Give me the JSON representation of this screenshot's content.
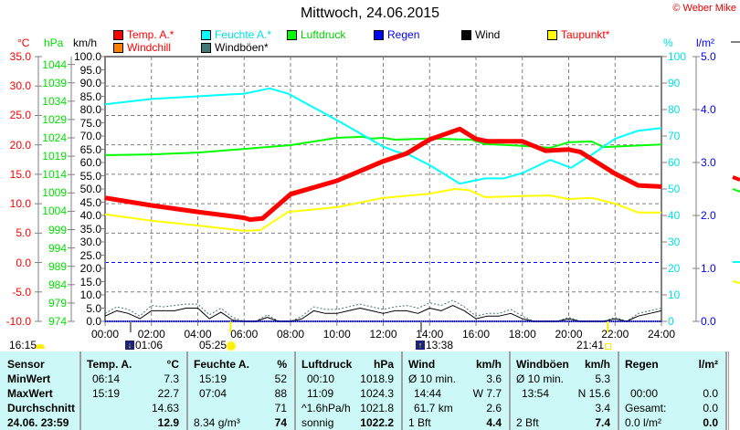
{
  "title": "Mittwoch, 24.06.2015",
  "copyright": "© Weber Mike",
  "legend": [
    {
      "label": "Temp. A.*",
      "color": "#ff0000",
      "text_color": "#ff0000"
    },
    {
      "label": "Feuchte A.*",
      "color": "#00ffff",
      "text_color": "#00e0e0"
    },
    {
      "label": "Luftdruck",
      "color": "#00ff00",
      "text_color": "#00d000"
    },
    {
      "label": "Regen",
      "color": "#0000ff",
      "text_color": "#0000ff"
    },
    {
      "label": "Wind",
      "color": "#000000",
      "text_color": "#000000"
    },
    {
      "label": "Taupunkt*",
      "color": "#ffff00",
      "text_color": "#ff0000"
    },
    {
      "label": "Windchill",
      "color": "#ff8000",
      "text_color": "#ff0000"
    },
    {
      "label": "Windböen*",
      "color": "#407878",
      "text_color": "#000000"
    }
  ],
  "chart_data": {
    "type": "line",
    "title": "Mittwoch, 24.06.2015",
    "x_ticks": [
      "00:00",
      "02:00",
      "04:00",
      "06:00",
      "08:00",
      "10:00",
      "12:00",
      "14:00",
      "16:00",
      "18:00",
      "20:00",
      "22:00",
      "24:00"
    ],
    "axes": {
      "temp": {
        "unit": "°C",
        "range": [
          -10,
          35
        ],
        "ticks": [
          "35.0",
          "30.0",
          "25.0",
          "20.0",
          "15.0",
          "10.0",
          "5.0",
          "0.0",
          "-5.0",
          "-10.0"
        ]
      },
      "pressure": {
        "unit": "hPa",
        "range": [
          974,
          1044
        ],
        "ticks": [
          "1044",
          "1039",
          "1034",
          "1029",
          "1024",
          "1019",
          "1014",
          "1009",
          "1004",
          "999",
          "994",
          "989",
          "984",
          "979",
          "974"
        ]
      },
      "wind": {
        "unit": "km/h",
        "range": [
          0,
          100
        ],
        "ticks": [
          "100.0",
          "95.0",
          "90.0",
          "85.0",
          "80.0",
          "75.0",
          "70.0",
          "65.0",
          "60.0",
          "55.0",
          "50.0",
          "45.0",
          "40.0",
          "35.0",
          "30.0",
          "25.0",
          "20.0",
          "15.0",
          "10.0",
          "5.0",
          "0.0"
        ]
      },
      "humidity": {
        "unit": "%",
        "range": [
          0,
          100
        ],
        "ticks": [
          "100",
          "90",
          "80",
          "70",
          "60",
          "50",
          "40",
          "30",
          "20",
          "10",
          "0"
        ]
      },
      "rain": {
        "unit": "l/m²",
        "range": [
          0,
          5
        ],
        "ticks": [
          "5.0",
          "4.0",
          "3.0",
          "2.0",
          "1.0",
          "0.0"
        ]
      }
    },
    "grid": true,
    "series": {
      "temp": [
        [
          0,
          11.0
        ],
        [
          2,
          9.7
        ],
        [
          4,
          8.6
        ],
        [
          6,
          7.6
        ],
        [
          6.25,
          7.3
        ],
        [
          6.8,
          7.5
        ],
        [
          8,
          11.6
        ],
        [
          10,
          13.9
        ],
        [
          12,
          17.2
        ],
        [
          13,
          18.5
        ],
        [
          14,
          20.9
        ],
        [
          15.3,
          22.7
        ],
        [
          16,
          21.0
        ],
        [
          16.5,
          20.6
        ],
        [
          18,
          20.6
        ],
        [
          19,
          19.0
        ],
        [
          20,
          19.2
        ],
        [
          20.5,
          18.8
        ],
        [
          22,
          15.1
        ],
        [
          23,
          13.1
        ],
        [
          24,
          12.9
        ]
      ],
      "windchill": [
        [
          0,
          11.0
        ],
        [
          2,
          9.7
        ],
        [
          4,
          8.6
        ],
        [
          6,
          7.6
        ],
        [
          6.25,
          7.3
        ],
        [
          6.8,
          7.6
        ],
        [
          8,
          11.9
        ],
        [
          10,
          14.1
        ],
        [
          12,
          17.5
        ],
        [
          13,
          18.8
        ],
        [
          14,
          21.2
        ],
        [
          15.3,
          22.7
        ],
        [
          16,
          21.0
        ],
        [
          16.5,
          20.4
        ],
        [
          18,
          20.4
        ],
        [
          19,
          18.8
        ],
        [
          20,
          19.0
        ],
        [
          20.5,
          18.6
        ],
        [
          22,
          14.8
        ],
        [
          23,
          12.9
        ],
        [
          24,
          12.9
        ]
      ],
      "humidity": [
        [
          0,
          82
        ],
        [
          2,
          84
        ],
        [
          4,
          85
        ],
        [
          6,
          86
        ],
        [
          7.1,
          88
        ],
        [
          7.9,
          86
        ],
        [
          10,
          76
        ],
        [
          12,
          66
        ],
        [
          12.6,
          64
        ],
        [
          13.1,
          63
        ],
        [
          14,
          59
        ],
        [
          15.3,
          52
        ],
        [
          16.4,
          54
        ],
        [
          17.2,
          54
        ],
        [
          18,
          56
        ],
        [
          19.2,
          61
        ],
        [
          20.1,
          58
        ],
        [
          21,
          63
        ],
        [
          22,
          69
        ],
        [
          23,
          72
        ],
        [
          24,
          73
        ]
      ],
      "pressure": [
        [
          0,
          1019.3
        ],
        [
          2,
          1019.5
        ],
        [
          4,
          1020.0
        ],
        [
          6,
          1021.0
        ],
        [
          8,
          1022.0
        ],
        [
          10,
          1024.0
        ],
        [
          11.1,
          1024.3
        ],
        [
          11.5,
          1023.8
        ],
        [
          12,
          1024.0
        ],
        [
          12.5,
          1023.5
        ],
        [
          14,
          1023.8
        ],
        [
          15.8,
          1023.5
        ],
        [
          16.4,
          1022.3
        ],
        [
          18,
          1021.8
        ],
        [
          19.2,
          1021.3
        ],
        [
          20,
          1022.8
        ],
        [
          21,
          1023.0
        ],
        [
          21.5,
          1021.5
        ],
        [
          24,
          1022.2
        ]
      ],
      "dewpoint": [
        [
          0,
          8.2
        ],
        [
          2,
          7.1
        ],
        [
          4,
          6.3
        ],
        [
          6,
          5.4
        ],
        [
          6.7,
          5.5
        ],
        [
          7.9,
          8.6
        ],
        [
          10,
          9.4
        ],
        [
          12,
          11.0
        ],
        [
          14,
          11.7
        ],
        [
          15.1,
          12.5
        ],
        [
          15.7,
          12.3
        ],
        [
          16.4,
          11.1
        ],
        [
          18,
          11.3
        ],
        [
          19.2,
          11.4
        ],
        [
          20,
          10.8
        ],
        [
          21,
          11.0
        ],
        [
          22,
          10.0
        ],
        [
          23,
          8.5
        ],
        [
          24,
          8.5
        ]
      ],
      "wind_halfhourly": [
        2,
        4,
        3,
        1,
        4,
        4,
        4,
        5,
        5,
        1,
        3.5,
        0.5,
        0,
        0,
        1.5,
        0,
        0,
        1,
        4,
        3,
        3,
        4,
        5,
        4,
        3,
        4,
        4,
        3,
        5,
        4,
        6,
        4,
        1,
        2,
        2,
        3,
        1,
        0,
        0,
        0,
        1,
        0,
        0,
        0,
        1,
        0,
        2,
        3,
        4
      ],
      "gust_halfhourly": [
        3,
        5.5,
        4.5,
        2,
        6,
        5.5,
        6,
        6.5,
        6.5,
        2.5,
        5,
        1.5,
        0,
        0,
        2.5,
        0,
        0,
        2,
        5.5,
        4.5,
        4.5,
        5.5,
        6.5,
        5.5,
        4.5,
        5.5,
        6,
        5,
        7,
        6,
        8,
        5.5,
        2,
        3,
        3,
        4.5,
        2,
        0,
        0,
        0,
        1.5,
        0,
        0,
        0,
        1.5,
        0,
        3,
        4,
        5
      ],
      "rain": [
        [
          0,
          0
        ],
        [
          24,
          0
        ]
      ]
    },
    "freezing_line_temp": 0
  },
  "astro": {
    "cloud_time": "16:15",
    "moonset": "01:06",
    "sunrise": "05:25",
    "moonrise": "13:38",
    "sunset": "21:41"
  },
  "table": {
    "sensor": {
      "header": "Sensor",
      "rows": [
        "MinWert",
        "MaxWert",
        "Durchschnitt",
        "24.06. 23:59"
      ]
    },
    "columns": [
      {
        "name": "Temp. A.",
        "unit": "°C",
        "rows": [
          [
            "06:14",
            "7.3"
          ],
          [
            "15:19",
            "22.7"
          ],
          [
            "",
            "14.63"
          ],
          [
            "",
            "12.9"
          ]
        ]
      },
      {
        "name": "Feuchte A.",
        "unit": "%",
        "rows": [
          [
            "15:19",
            "52"
          ],
          [
            "07:04",
            "88"
          ],
          [
            "",
            "71"
          ],
          [
            "8.34 g/m³",
            "74"
          ]
        ]
      },
      {
        "name": "Luftdruck",
        "unit": "hPa",
        "rows": [
          [
            "00:10",
            "1018.9"
          ],
          [
            "11:09",
            "1024.3"
          ],
          [
            "^1.6hPa/h",
            "1021.8"
          ],
          [
            "sonnig",
            "1022.2"
          ]
        ]
      },
      {
        "name": "Wind",
        "unit": "km/h",
        "rows": [
          [
            "Ø 10 min.",
            "3.6"
          ],
          [
            "14:44",
            "W 7.7"
          ],
          [
            "61.7 km",
            "2.6"
          ],
          [
            "1 Bft",
            "4.4"
          ]
        ]
      },
      {
        "name": "Windböen",
        "unit": "km/h",
        "rows": [
          [
            "Ø 10 min.",
            "5.3"
          ],
          [
            "13:54",
            "N 15.6"
          ],
          [
            "",
            "3.4"
          ],
          [
            "2 Bft",
            "7.4"
          ]
        ]
      },
      {
        "name": "Regen",
        "unit": "l/m²",
        "rows": [
          [
            "",
            ""
          ],
          [
            "00:00",
            "0.0"
          ],
          [
            "Gesamt:",
            "0.0"
          ],
          [
            "0.0 l/m²",
            "0.0"
          ]
        ]
      }
    ]
  }
}
